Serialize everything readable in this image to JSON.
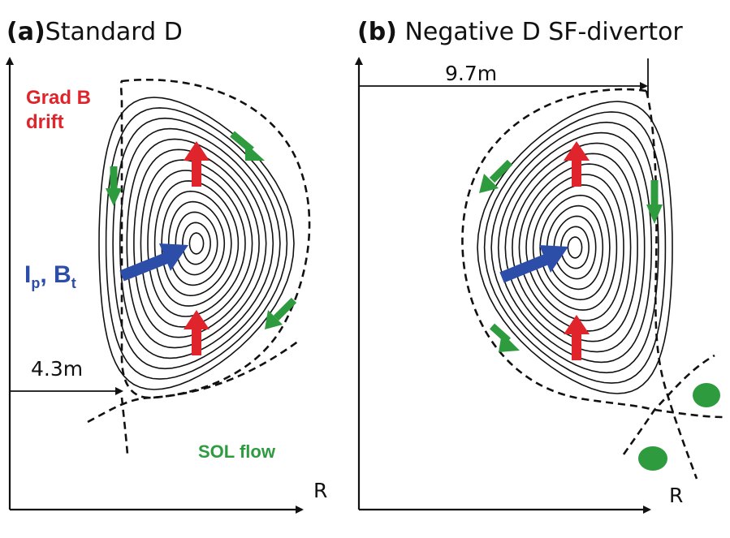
{
  "panel_a": {
    "title_tag": "(a)",
    "title_text": "Standard D",
    "dimension_label": "4.3m",
    "axis_label": "R",
    "grad_b_line1": "Grad B",
    "grad_b_line2": "drift",
    "ip_label": "I",
    "ip_sub": "p",
    "ip_sep": ", B",
    "bt_sub": "t",
    "sol_flow_label": "SOL flow"
  },
  "panel_b": {
    "title_tag": "(b)",
    "title_text": "Negative D  SF-divertor",
    "dimension_label": "9.7m",
    "axis_label": "R"
  },
  "colors": {
    "grad_b_arrow": "#e0242b",
    "sol_flow_arrow": "#2e9b3f",
    "current_arrow": "#2d4ea8",
    "flux_surface": "#111111"
  },
  "icons": {
    "grad_b": "red-up-arrow",
    "sol_flow": "green-arrow",
    "current": "blue-arrow",
    "divertor_target": "green-ellipse"
  }
}
